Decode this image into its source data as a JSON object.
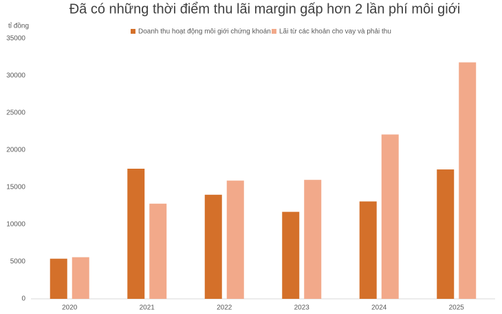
{
  "chart_data": {
    "type": "bar",
    "title": "Đã có những thời điểm thu lãi margin gấp hơn 2 lần phí môi giới",
    "y_label": "tỉ đồng",
    "categories": [
      "2020",
      "2021",
      "2022",
      "2023",
      "2024",
      "2025"
    ],
    "series": [
      {
        "name": "Doanh thu hoạt động môi giới chứng khoán",
        "color": "#d4702a",
        "values": [
          5400,
          17500,
          14000,
          11700,
          13100,
          17400
        ]
      },
      {
        "name": "Lãi từ các khoản cho vay và phải thu",
        "color": "#f2a98a",
        "values": [
          5600,
          12800,
          15900,
          16000,
          22100,
          31800
        ]
      }
    ],
    "ylim": [
      0,
      35000
    ],
    "yticks": [
      0,
      5000,
      10000,
      15000,
      20000,
      25000,
      30000,
      35000
    ],
    "grid": false,
    "legend": "top"
  }
}
